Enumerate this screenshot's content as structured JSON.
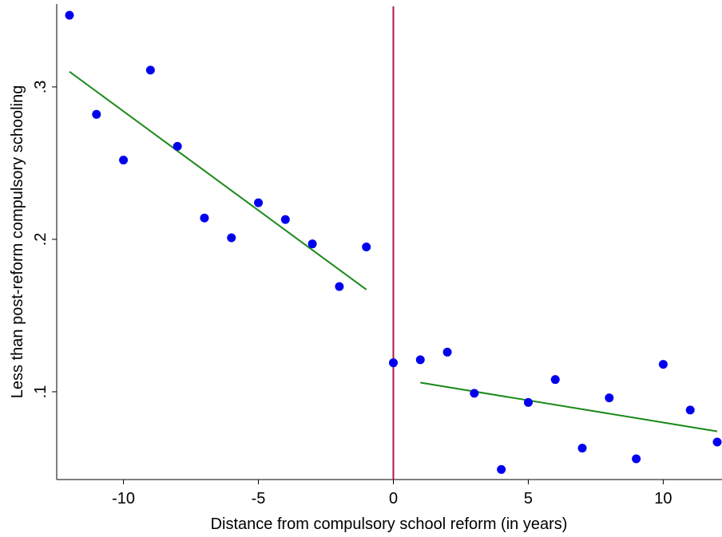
{
  "chart_data": {
    "type": "scatter",
    "xlabel": "Distance from compulsory school reform (in years)",
    "ylabel": "Less than post-reform compulsory schooling",
    "xlim": [
      -12,
      12
    ],
    "ylim": [
      0.0424,
      0.3544
    ],
    "x_ticks": [
      -10,
      -5,
      0,
      5,
      10
    ],
    "x_tick_labels": [
      "-10",
      "-5",
      "0",
      "5",
      "10"
    ],
    "y_ticks": [
      0.1,
      0.2,
      0.3
    ],
    "y_tick_labels": [
      ".1",
      ".2",
      ".3"
    ],
    "grid": false,
    "points": {
      "color": "#0000ee",
      "x": [
        -12,
        -11,
        -10,
        -9,
        -8,
        -7,
        -6,
        -5,
        -4,
        -3,
        -2,
        -1,
        0,
        1,
        2,
        3,
        4,
        5,
        6,
        7,
        8,
        9,
        10,
        11,
        12
      ],
      "y": [
        0.347,
        0.282,
        0.252,
        0.311,
        0.261,
        0.214,
        0.201,
        0.224,
        0.213,
        0.197,
        0.169,
        0.195,
        0.119,
        0.121,
        0.126,
        0.099,
        0.049,
        0.093,
        0.108,
        0.063,
        0.096,
        0.056,
        0.118,
        0.088,
        0.067
      ]
    },
    "fit_lines": [
      {
        "color": "#1a8a1a",
        "x": [
          -12,
          -1
        ],
        "y": [
          0.31,
          0.167
        ]
      },
      {
        "color": "#1a8a1a",
        "x": [
          1,
          12
        ],
        "y": [
          0.106,
          0.074
        ]
      }
    ],
    "reference_line": {
      "x": 0,
      "color": "#b0134a"
    }
  }
}
